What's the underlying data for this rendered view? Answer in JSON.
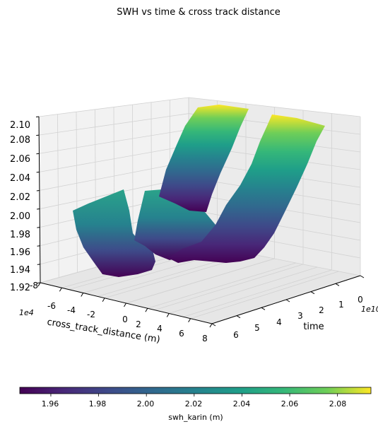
{
  "chart_data": {
    "type": "surface",
    "title": "SWH vs time & cross track distance",
    "xlabel": "cross_track_distance (m)",
    "x_offset_label": "1e4",
    "x_ticks": [
      -8,
      -6,
      -4,
      -2,
      0,
      2,
      4,
      6,
      8
    ],
    "ylabel": "time",
    "y_offset_label": "1e10",
    "y_ticks": [
      0,
      1,
      2,
      3,
      4,
      5,
      6
    ],
    "z_ticks": [
      "1.92",
      "1.94",
      "1.96",
      "1.98",
      "2.00",
      "2.02",
      "2.04",
      "2.06",
      "2.08",
      "2.10"
    ],
    "zlim": [
      1.92,
      2.1
    ],
    "colormap": "viridis",
    "colorbar": {
      "label": "swh_karin (m)",
      "ticks": [
        "1.96",
        "1.98",
        "2.00",
        "2.02",
        "2.04",
        "2.06",
        "2.08"
      ],
      "range": [
        1.947,
        2.094
      ],
      "orientation": "horizontal",
      "placement": "bottom"
    },
    "grid": true
  },
  "colors": {
    "pane_left": "#f2f2f2",
    "pane_right": "#ebebeb",
    "pane_floor": "#e6e6e6",
    "grid": "#d2d2d2"
  }
}
